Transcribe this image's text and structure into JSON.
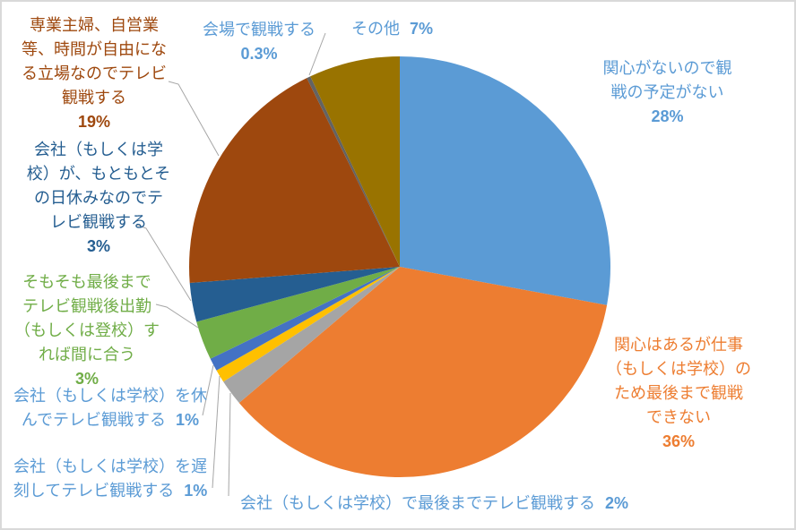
{
  "chart_data": {
    "type": "pie",
    "title": "",
    "legend": "none",
    "start_angle_deg": 0,
    "direction": "clockwise",
    "label_position": "outside-end with leader lines",
    "background": "#FFFFFF",
    "frame_border_color": "#D9D9D9",
    "leader_line_color": "#A6A6A6",
    "slices": [
      {
        "label": "関心がないので観戦の予定がない",
        "value": 28,
        "pct_text": "28%",
        "color": "#5B9BD5"
      },
      {
        "label": "関心はあるが仕事（もしくは学校）のため最後まで観戦できない",
        "value": 36,
        "pct_text": "36%",
        "color": "#ED7D31"
      },
      {
        "label": "会社（もしくは学校）で最後までテレビ観戦する",
        "value": 2,
        "pct_text": "2%",
        "color": "#A5A5A5"
      },
      {
        "label": "会社（もしくは学校）を遅刻してテレビ観戦する",
        "value": 1,
        "pct_text": "1%",
        "color": "#FFC000"
      },
      {
        "label": "会社（もしくは学校）を休んでテレビ観戦する",
        "value": 1,
        "pct_text": "1%",
        "color": "#4472C4"
      },
      {
        "label": "そもそも最後までテレビ観戦後出勤（もしくは登校）すれば間に合う",
        "value": 3,
        "pct_text": "3%",
        "color": "#70AD47"
      },
      {
        "label": "会社（もしくは学校）が、もともとその日休みなのでテレビ観戦する",
        "value": 3,
        "pct_text": "3%",
        "color": "#255E91"
      },
      {
        "label": "専業主婦、自営業等、時間が自由になる立場なのでテレビ観戦する",
        "value": 19,
        "pct_text": "19%",
        "color": "#9E480E"
      },
      {
        "label": "会場で観戦する",
        "value": 0.3,
        "pct_text": "0.3%",
        "color": "#636363"
      },
      {
        "label": "その他",
        "value": 7,
        "pct_text": "7%",
        "color": "#997300"
      }
    ]
  },
  "callouts": [
    {
      "text": "関心がないので観\n戦の予定がない",
      "pct": "28%",
      "color": "#5B9BD5"
    },
    {
      "text": "関心はあるが仕事\n（もしくは学校）の\nため最後まで観戦\nできない",
      "pct": "36%",
      "color": "#ED7D31"
    },
    {
      "text": "会社（もしくは学校）で最後までテレビ観戦する",
      "pct": "2%",
      "color": "#5B9BD5"
    },
    {
      "text": "会社（もしくは学校）を遅\n刻してテレビ観戦する",
      "pct": "1%",
      "color": "#5B9BD5"
    },
    {
      "text": "会社（もしくは学校）を休\nんでテレビ観戦する",
      "pct": "1%",
      "color": "#5B9BD5"
    },
    {
      "text": "そもそも最後まで\nテレビ観戦後出勤\n（もしくは登校）す\nれば間に合う",
      "pct": "3%",
      "color": "#70AD47"
    },
    {
      "text": "会社（もしくは学\n校）が、もともとそ\nの日休みなのでテ\nレビ観戦する",
      "pct": "3%",
      "color": "#255E91"
    },
    {
      "text": "専業主婦、自営業\n等、時間が自由にな\nる立場なのでテレビ\n観戦する",
      "pct": "19%",
      "color": "#9E480E"
    },
    {
      "text": "会場で観戦する",
      "pct": "0.3%",
      "color": "#5B9BD5"
    },
    {
      "text": "その他",
      "pct": "7%",
      "color": "#5B9BD5"
    }
  ]
}
